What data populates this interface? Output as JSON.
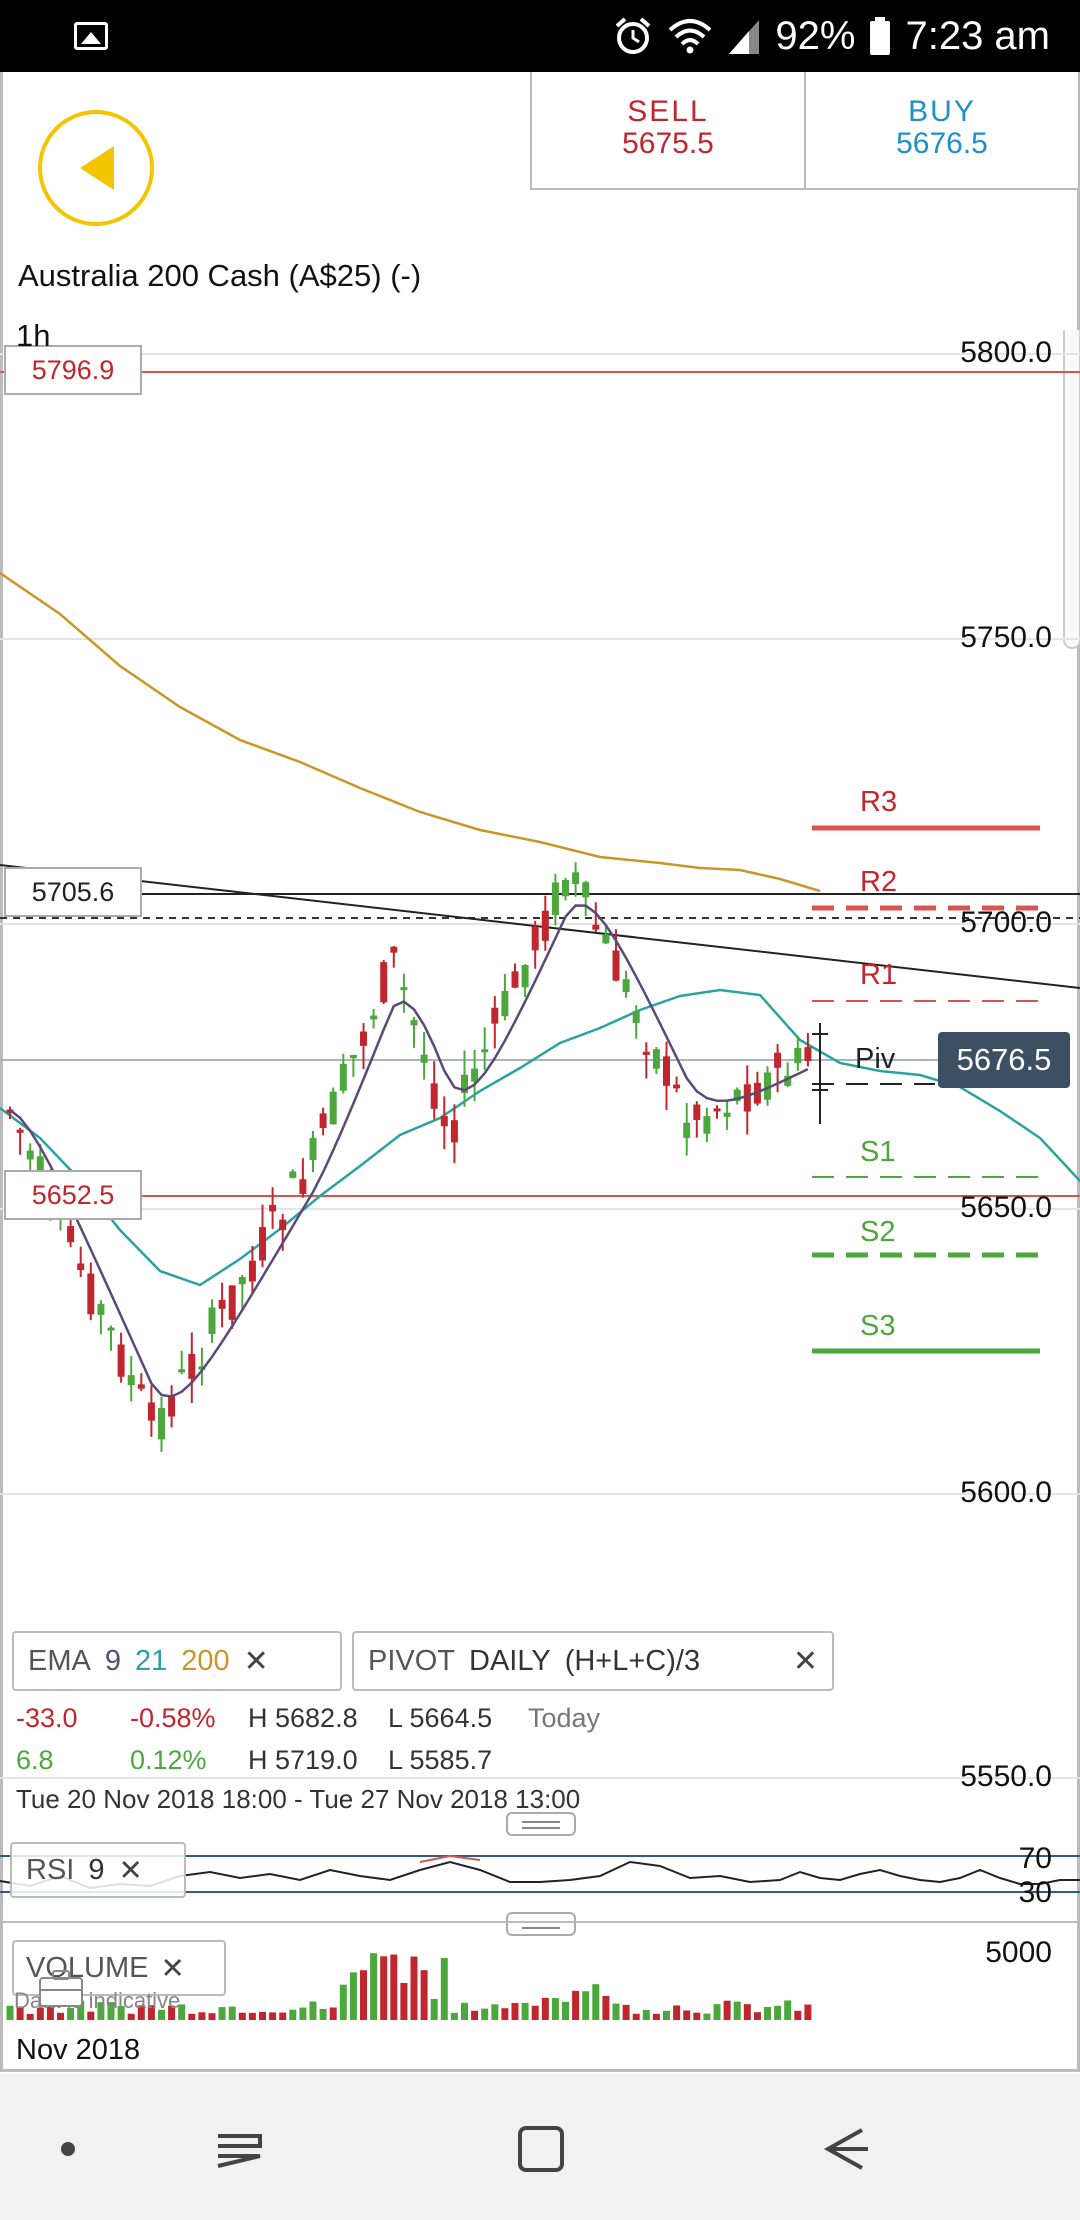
{
  "status_bar": {
    "battery": "92%",
    "time": "7:23 am",
    "icons": [
      "image-icon",
      "alarm-icon",
      "wifi-icon",
      "signal-icon",
      "battery-icon"
    ]
  },
  "header": {
    "sell_label": "SELL",
    "sell_price": "5675.5",
    "buy_label": "BUY",
    "buy_price": "5676.5"
  },
  "instrument": {
    "name": "Australia 200 Cash (A$25) (-)",
    "timeframe": "1h"
  },
  "chart": {
    "y_axis_labels": [
      "5800.0",
      "5750.0",
      "5700.0",
      "5650.0",
      "5600.0",
      "5550.0"
    ],
    "level_tags": [
      "5796.9",
      "5705.6",
      "5652.5"
    ],
    "pivot_labels": {
      "r3": "R3",
      "r2": "R2",
      "r1": "R1",
      "piv": "Piv",
      "s1": "S1",
      "s2": "S2",
      "s3": "S3"
    },
    "current_price": "5676.5",
    "colors": {
      "up": "#4ca83c",
      "down": "#c0262d",
      "ema9": "#5a4a7a",
      "ema21": "#2aa3a0",
      "ema200": "#c9962a"
    }
  },
  "indicators": {
    "ema": {
      "label": "EMA",
      "p1": "9",
      "p2": "21",
      "p3": "200"
    },
    "pivot": {
      "label": "PIVOT",
      "period": "DAILY",
      "formula": "(H+L+C)/3"
    },
    "rsi": {
      "label": "RSI",
      "period": "9",
      "upper": "70",
      "lower": "30"
    },
    "volume": {
      "label": "VOLUME",
      "axis": "5000"
    }
  },
  "stats": {
    "row1": {
      "change": "-33.0",
      "change_pct": "-0.58%",
      "high": "H 5682.8",
      "low": "L 5664.5",
      "period": "Today"
    },
    "row2": {
      "change": "6.8",
      "change_pct": "0.12%",
      "high": "H 5719.0",
      "low": "L 5585.7"
    }
  },
  "date_range": "Tue 20 Nov 2018 18:00 - Tue 27 Nov 2018 13:00",
  "data_note": "Data is indicative",
  "bottom_date": "Nov 2018"
}
